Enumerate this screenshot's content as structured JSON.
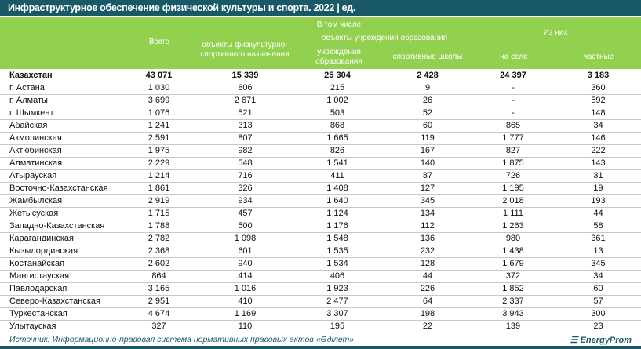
{
  "title": "Инфраструктурное обеспечение физической культуры и спорта. 2022 | ед.",
  "headers": {
    "total": "Всего",
    "including": "В том числе",
    "phys": "объекты физкультурно-спортивного назначения",
    "edu_objects": "объекты учреждений образования",
    "edu": "учреждения образования",
    "schools": "спортивные школы",
    "of_them": "Из них",
    "rural": "на селе",
    "private": "частные"
  },
  "total_row": [
    "Казахстан",
    "43 071",
    "15 339",
    "25 304",
    "2 428",
    "24 397",
    "3 183"
  ],
  "rows": [
    [
      "г. Астана",
      "1 030",
      "806",
      "215",
      "9",
      "-",
      "360"
    ],
    [
      "г. Алматы",
      "3 699",
      "2 671",
      "1 002",
      "26",
      "-",
      "592"
    ],
    [
      "г. Шымкент",
      "1 076",
      "521",
      "503",
      "52",
      "-",
      "148"
    ],
    [
      "Абайская",
      "1 241",
      "313",
      "868",
      "60",
      "865",
      "34"
    ],
    [
      "Акмолинская",
      "2 591",
      "807",
      "1 665",
      "119",
      "1 777",
      "146"
    ],
    [
      "Актюбинская",
      "1 975",
      "982",
      "826",
      "167",
      "827",
      "222"
    ],
    [
      "Алматинская",
      "2 229",
      "548",
      "1 541",
      "140",
      "1 875",
      "143"
    ],
    [
      "Атырауская",
      "1 214",
      "716",
      "411",
      "87",
      "726",
      "31"
    ],
    [
      "Восточно-Казахстанская",
      "1 861",
      "326",
      "1 408",
      "127",
      "1 195",
      "19"
    ],
    [
      "Жамбылская",
      "2 919",
      "934",
      "1 640",
      "345",
      "2 018",
      "193"
    ],
    [
      "Жетысуская",
      "1 715",
      "457",
      "1 124",
      "134",
      "1 111",
      "44"
    ],
    [
      "Западно-Казахстанская",
      "1 788",
      "500",
      "1 176",
      "112",
      "1 263",
      "58"
    ],
    [
      "Карагандинская",
      "2 782",
      "1 098",
      "1 548",
      "136",
      "980",
      "361"
    ],
    [
      "Кызылординская",
      "2 368",
      "601",
      "1 535",
      "232",
      "1 438",
      "13"
    ],
    [
      "Костанайская",
      "2 602",
      "940",
      "1 534",
      "128",
      "1 679",
      "345"
    ],
    [
      "Мангистауская",
      "864",
      "414",
      "406",
      "44",
      "372",
      "34"
    ],
    [
      "Павлодарская",
      "3 165",
      "1 016",
      "1 923",
      "226",
      "1 852",
      "60"
    ],
    [
      "Северо-Казахстанская",
      "2 951",
      "410",
      "2 477",
      "64",
      "2 337",
      "57"
    ],
    [
      "Туркестанская",
      "4 674",
      "1 169",
      "3 307",
      "198",
      "3 943",
      "300"
    ],
    [
      "Улытауская",
      "327",
      "110",
      "195",
      "22",
      "139",
      "23"
    ]
  ],
  "source": "Источник: Информационно-правовая система нормативных правовых актов «Әділет»",
  "logo": "EnergyProm"
}
